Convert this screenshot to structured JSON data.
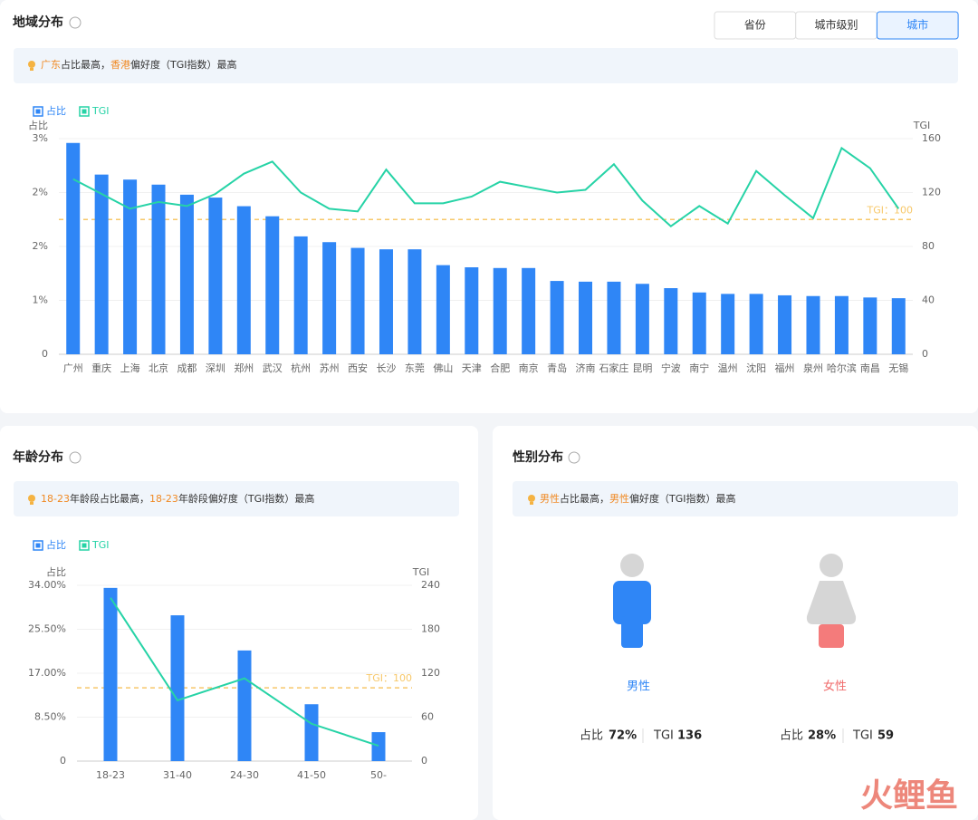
{
  "region": {
    "title": "地域分布",
    "tabs": [
      "省份",
      "城市级别",
      "城市"
    ],
    "active_tab": 2,
    "highlight": [
      {
        "text": "广东",
        "em": true
      },
      {
        "text": "占比最高，",
        "em": false
      },
      {
        "text": "香港",
        "em": true
      },
      {
        "text": "偏好度（TGI指数）最高",
        "em": false
      }
    ]
  },
  "age": {
    "title": "年龄分布",
    "highlight": [
      {
        "text": "18-23",
        "em": true
      },
      {
        "text": "年龄段占比最高，",
        "em": false
      },
      {
        "text": "18-23",
        "em": true
      },
      {
        "text": "年龄段偏好度（TGI指数）最高",
        "em": false
      }
    ]
  },
  "chart_data": [
    {
      "type": "bar",
      "ylabel": "占比",
      "y2label": "TGI",
      "categories": [
        "广州",
        "重庆",
        "上海",
        "北京",
        "成都",
        "深圳",
        "郑州",
        "武汉",
        "杭州",
        "苏州",
        "西安",
        "长沙",
        "东莞",
        "佛山",
        "天津",
        "合肥",
        "南京",
        "青岛",
        "济南",
        "石家庄",
        "昆明",
        "宁波",
        "南宁",
        "温州",
        "沈阳",
        "福州",
        "泉州",
        "哈尔滨",
        "南昌",
        "无锡"
      ],
      "series": [
        {
          "name": "占比",
          "type": "bar",
          "color": "#2f86f6",
          "values": [
            2.94,
            2.5,
            2.43,
            2.36,
            2.22,
            2.18,
            2.06,
            1.92,
            1.64,
            1.56,
            1.48,
            1.46,
            1.46,
            1.24,
            1.21,
            1.2,
            1.2,
            1.02,
            1.01,
            1.01,
            0.98,
            0.92,
            0.86,
            0.84,
            0.84,
            0.82,
            0.81,
            0.81,
            0.79,
            0.78
          ]
        },
        {
          "name": "TGI",
          "type": "line",
          "axis": "y2",
          "color": "#26d3a6",
          "values": [
            130,
            119,
            108,
            113,
            110,
            119,
            134,
            143,
            120,
            108,
            106,
            137,
            112,
            112,
            117,
            128,
            124,
            120,
            122,
            141,
            114,
            95,
            110,
            97,
            136,
            118,
            101,
            153,
            138,
            108
          ]
        }
      ],
      "ylim": [
        0,
        3
      ],
      "yticks": [
        0,
        {
          "value": 0.75,
          "label": "1%"
        },
        {
          "value": 1.5,
          "label": "2%"
        },
        {
          "value": 2.25,
          "label": "2%"
        },
        {
          "value": 3,
          "label": "3%"
        }
      ],
      "y2lim": [
        0,
        160
      ],
      "y2ticks": [
        0,
        40,
        80,
        120,
        160
      ],
      "reference": {
        "value": 100,
        "label": "TGI：100",
        "color": "#f7c86a"
      },
      "grid": true
    },
    {
      "type": "bar",
      "ylabel": "占比",
      "y2label": "TGI",
      "categories": [
        "18-23",
        "31-40",
        "24-30",
        "41-50",
        "50-"
      ],
      "series": [
        {
          "name": "占比",
          "type": "bar",
          "color": "#2f86f6",
          "values": [
            33.5,
            28.2,
            21.4,
            11.0,
            5.6
          ]
        },
        {
          "name": "TGI",
          "type": "line",
          "axis": "y2",
          "color": "#26d3a6",
          "values": [
            223,
            83,
            113,
            51,
            21
          ]
        }
      ],
      "ylim": [
        0,
        34
      ],
      "yticks": [
        0,
        {
          "value": 8.5,
          "label": "8.50%"
        },
        {
          "value": 17,
          "label": "17.00%"
        },
        {
          "value": 25.5,
          "label": "25.50%"
        },
        {
          "value": 34,
          "label": "34.00%"
        }
      ],
      "y2lim": [
        0,
        240
      ],
      "y2ticks": [
        0,
        60,
        120,
        180,
        240
      ],
      "reference": {
        "value": 100,
        "label": "TGI：100",
        "color": "#f7c86a"
      },
      "grid": true
    }
  ],
  "gender": {
    "title": "性别分布",
    "highlight": [
      {
        "text": "男性",
        "em": true
      },
      {
        "text": "占比最高，",
        "em": false
      },
      {
        "text": "男性",
        "em": true
      },
      {
        "text": "偏好度（TGI指数）最高",
        "em": false
      }
    ],
    "items": [
      {
        "label": "男性",
        "share_label": "占比",
        "share": "72%",
        "tgi_label": "TGI",
        "tgi": 136
      },
      {
        "label": "女性",
        "share_label": "占比",
        "share": "28%",
        "tgi_label": "TGI",
        "tgi": 59
      }
    ]
  },
  "watermark": "火鲤鱼"
}
